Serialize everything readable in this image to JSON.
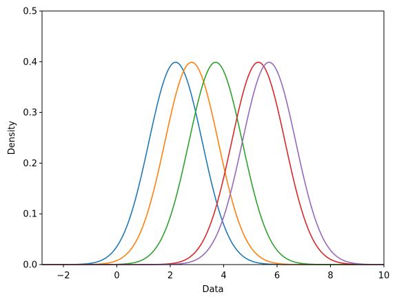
{
  "chart_data": {
    "type": "line",
    "title": "",
    "xlabel": "Data",
    "ylabel": "Density",
    "xlim": [
      -2.8,
      10
    ],
    "ylim": [
      0,
      0.5
    ],
    "x_ticks": [
      -2,
      0,
      2,
      4,
      6,
      8,
      10
    ],
    "y_ticks": [
      0.0,
      0.1,
      0.2,
      0.3,
      0.4,
      0.5
    ],
    "x_tick_labels": [
      "−2",
      "0",
      "2",
      "4",
      "6",
      "8",
      "10"
    ],
    "y_tick_labels": [
      "0.0",
      "0.1",
      "0.2",
      "0.3",
      "0.4",
      "0.5"
    ],
    "grid": false,
    "legend": "none",
    "distribution": "normal",
    "series": [
      {
        "mean": 2.2,
        "std": 1.0,
        "color": "#1f77b4"
      },
      {
        "mean": 2.8,
        "std": 1.0,
        "color": "#ff7f0e"
      },
      {
        "mean": 3.7,
        "std": 1.0,
        "color": "#2ca02c"
      },
      {
        "mean": 5.3,
        "std": 1.0,
        "color": "#d62728"
      },
      {
        "mean": 5.7,
        "std": 1.0,
        "color": "#9467bd"
      }
    ]
  }
}
